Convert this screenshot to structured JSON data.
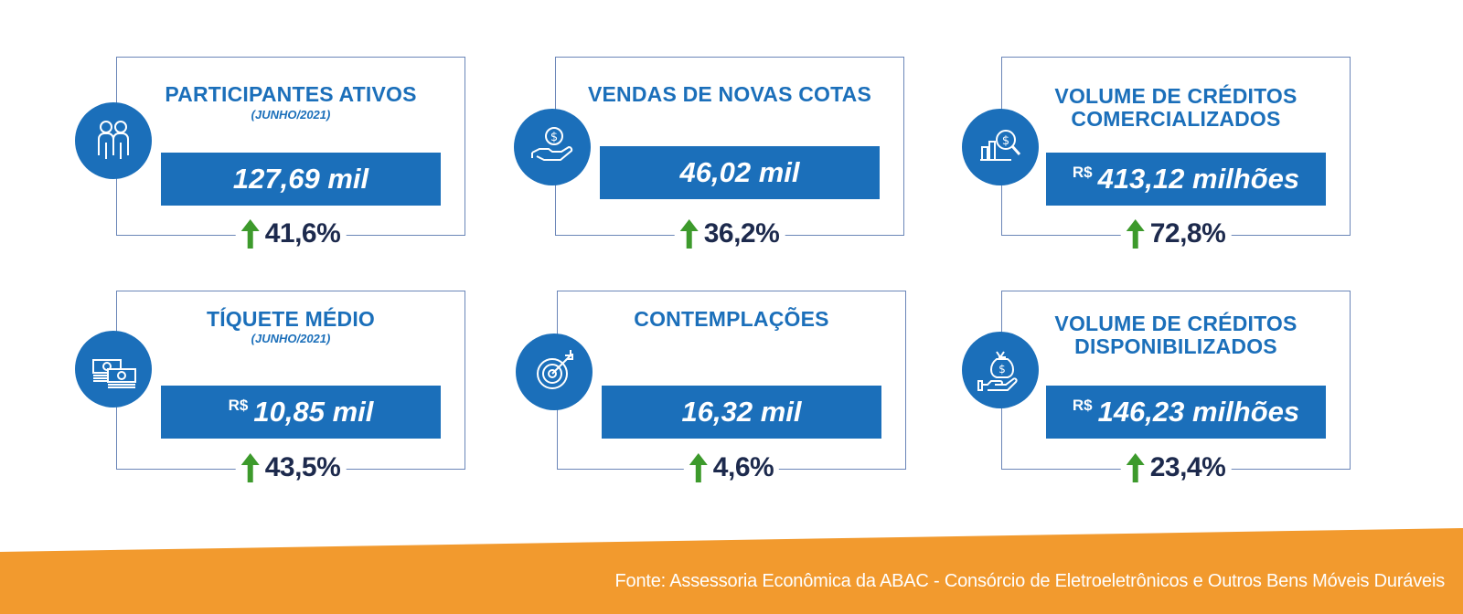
{
  "colors": {
    "brand_blue": "#1b6fba",
    "value_text": "#1d2a4d",
    "arrow_green": "#3d9a2c",
    "footer_orange": "#f29a2e"
  },
  "cards": [
    {
      "title": "PARTICIPANTES ATIVOS",
      "subtitle": "(JUNHO/2021)",
      "prefix": "",
      "value": "127,69 mil",
      "change": "41,6%",
      "icon": "people-icon"
    },
    {
      "title": "VENDAS DE NOVAS COTAS",
      "subtitle": "",
      "prefix": "",
      "value": "46,02 mil",
      "change": "36,2%",
      "icon": "hand-coin-icon"
    },
    {
      "title_line1": "VOLUME DE CRÉDITOS",
      "title_line2": "COMERCIALIZADOS",
      "prefix": "R$",
      "value": "413,12 milhões",
      "change": "72,8%",
      "icon": "chart-magnifier-icon"
    },
    {
      "title": "TÍQUETE MÉDIO",
      "subtitle": "(JUNHO/2021)",
      "prefix": "R$",
      "value": "10,85 mil",
      "change": "43,5%",
      "icon": "money-stack-icon"
    },
    {
      "title": "CONTEMPLAÇÕES",
      "subtitle": "",
      "prefix": "",
      "value": "16,32 mil",
      "change": "4,6%",
      "icon": "target-icon"
    },
    {
      "title_line1": "VOLUME DE CRÉDITOS",
      "title_line2": "DISPONIBILIZADOS",
      "prefix": "R$",
      "value": "146,23 milhões",
      "change": "23,4%",
      "icon": "money-bag-hand-icon"
    }
  ],
  "footer": {
    "source": "Fonte: Assessoria Econômica da ABAC - Consórcio de Eletroeletrônicos e Outros Bens Móveis Duráveis"
  }
}
